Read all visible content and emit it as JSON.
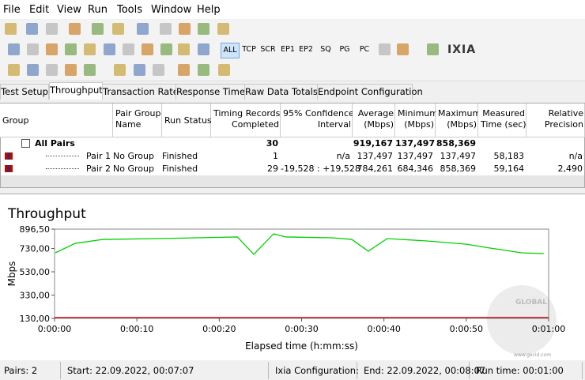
{
  "menu": [
    "File",
    "Edit",
    "View",
    "Run",
    "Tools",
    "Window",
    "Help"
  ],
  "toolbar": {
    "filters": [
      "ALL",
      "TCP",
      "SCR",
      "EP1",
      "EP2",
      "SQ",
      "PG",
      "PC"
    ],
    "logo": "IXIA"
  },
  "tabs": [
    "Test Setup",
    "Throughput",
    "Transaction Rate",
    "Response Time",
    "Raw Data Totals",
    "Endpoint Configuration"
  ],
  "table": {
    "headers": [
      [
        "Group"
      ],
      [
        "Pair Group",
        "Name"
      ],
      [
        "Run Status"
      ],
      [
        "Timing Records",
        "Completed"
      ],
      [
        "95% Confidence",
        "Interval"
      ],
      [
        "Average",
        "(Mbps)"
      ],
      [
        "Minimum",
        "(Mbps)"
      ],
      [
        "Maximum",
        "(Mbps)"
      ],
      [
        "Measured",
        "Time (sec)"
      ],
      [
        "Relative",
        "Precision"
      ]
    ],
    "rows": [
      {
        "group": "All Pairs",
        "timing_records": "30",
        "average": "919,167",
        "minimum": "137,497",
        "maximum": "858,369"
      },
      {
        "group": "Pair 1",
        "pair_group_name": "No Group",
        "run_status": "Finished",
        "timing_records": "1",
        "confidence": "n/a",
        "average": "137,497",
        "minimum": "137,497",
        "maximum": "137,497",
        "measured_time": "58,183",
        "relative_precision": "n/a"
      },
      {
        "group": "Pair 2",
        "pair_group_name": "No Group",
        "run_status": "Finished",
        "timing_records": "29",
        "confidence": "-19,528 : +19,528",
        "average": "784,261",
        "minimum": "684,346",
        "maximum": "858,369",
        "measured_time": "59,164",
        "relative_precision": "2,490"
      }
    ]
  },
  "chart_data": {
    "type": "line",
    "title": "Throughput",
    "y_label": "Mbps",
    "x_label": "Elapsed time (h:mm:ss)",
    "xlim": [
      0,
      60
    ],
    "ylim": [
      130,
      896.5
    ],
    "yticks": [
      {
        "value": 130,
        "label": "130,00"
      },
      {
        "value": 330,
        "label": "330,00"
      },
      {
        "value": 530,
        "label": "530,00"
      },
      {
        "value": 730,
        "label": "730,00"
      },
      {
        "value": 896.5,
        "label": "896,50"
      }
    ],
    "xticks": [
      {
        "value": 0,
        "label": "0:00:00"
      },
      {
        "value": 10,
        "label": "0:00:10"
      },
      {
        "value": 20,
        "label": "0:00:20"
      },
      {
        "value": 30,
        "label": "0:00:30"
      },
      {
        "value": 40,
        "label": "0:00:40"
      },
      {
        "value": 50,
        "label": "0:00:50"
      },
      {
        "value": 60,
        "label": "0:01:00"
      }
    ],
    "series": [
      {
        "color": "#d40000",
        "x": [
          0,
          60
        ],
        "values": [
          137.497,
          137.497
        ]
      },
      {
        "color": "#00d000",
        "x": [
          0.1,
          2.5,
          5.9,
          12.6,
          22.2,
          24.2,
          26.6,
          28.1,
          33.7,
          36.1,
          38.1,
          40.4,
          45.2,
          50,
          52.9,
          56.7,
          59.4
        ],
        "values": [
          693,
          774,
          808,
          815,
          829,
          680,
          856,
          829,
          822,
          808,
          707,
          815,
          795,
          767,
          734,
          693,
          686
        ]
      }
    ]
  },
  "status": [
    "Pairs: 2",
    "Start: 22.09.2022, 00:07:07",
    "Ixia Configuration:",
    "End: 22.09.2022, 00:08:07",
    "Run time: 00:01:00"
  ],
  "watermark": {
    "brand": "GLOBAL",
    "url": "www.gecid.com"
  }
}
